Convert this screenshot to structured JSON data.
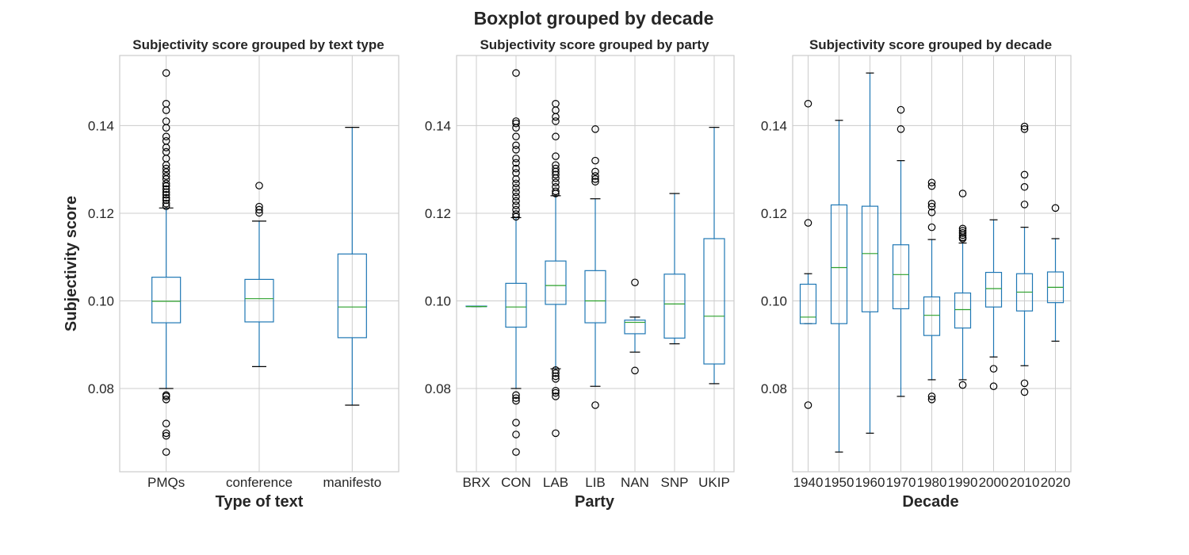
{
  "figure": {
    "suptitle": "Boxplot grouped by decade"
  },
  "chart_data": [
    {
      "type": "box",
      "title": "Subjectivity score grouped by text type",
      "xlabel": "Type of text",
      "ylabel": "Subjectivity score",
      "ylim": [
        0.061,
        0.156
      ],
      "yticks": [
        0.08,
        0.1,
        0.12,
        0.14
      ],
      "ytick_labels": [
        "0.08",
        "0.10",
        "0.12",
        "0.14"
      ],
      "grid": true,
      "categories": [
        "PMQs",
        "conference",
        "manifesto"
      ],
      "boxes": [
        {
          "whislo": 0.08,
          "q1": 0.095,
          "med": 0.0999,
          "q3": 0.1054,
          "whishi": 0.1212,
          "fliers": [
            0.152,
            0.145,
            0.1435,
            0.141,
            0.1395,
            0.1375,
            0.1365,
            0.135,
            0.134,
            0.1325,
            0.131,
            0.1302,
            0.1294,
            0.1285,
            0.1278,
            0.1268,
            0.1262,
            0.1255,
            0.1248,
            0.1242,
            0.1235,
            0.123,
            0.1222,
            0.1216,
            0.0785,
            0.0782,
            0.0775,
            0.072,
            0.0698,
            0.0692,
            0.0655
          ]
        },
        {
          "whislo": 0.085,
          "q1": 0.0952,
          "med": 0.1005,
          "q3": 0.1049,
          "whishi": 0.1182,
          "fliers": [
            0.1263,
            0.1215,
            0.1208,
            0.1201
          ]
        },
        {
          "whislo": 0.0762,
          "q1": 0.0916,
          "med": 0.0986,
          "q3": 0.1107,
          "whishi": 0.1396,
          "fliers": []
        }
      ]
    },
    {
      "type": "box",
      "title": "Subjectivity score grouped by party",
      "xlabel": "Party",
      "ylabel": "",
      "ylim": [
        0.061,
        0.156
      ],
      "yticks": [
        0.08,
        0.1,
        0.12,
        0.14
      ],
      "ytick_labels": [
        "0.08",
        "0.10",
        "0.12",
        "0.14"
      ],
      "grid": true,
      "categories": [
        "BRX",
        "CON",
        "LAB",
        "LIB",
        "NAN",
        "SNP",
        "UKIP"
      ],
      "boxes": [
        {
          "whislo": 0.0987,
          "q1": 0.0987,
          "med": 0.0987,
          "q3": 0.0988,
          "whishi": 0.0988,
          "fliers": []
        },
        {
          "whislo": 0.08,
          "q1": 0.094,
          "med": 0.0986,
          "q3": 0.104,
          "whishi": 0.119,
          "fliers": [
            0.152,
            0.141,
            0.1405,
            0.1395,
            0.1375,
            0.1355,
            0.1345,
            0.1325,
            0.1315,
            0.1302,
            0.1292,
            0.1278,
            0.1268,
            0.1258,
            0.1248,
            0.1238,
            0.1228,
            0.1218,
            0.1208,
            0.1198,
            0.1192,
            0.0785,
            0.0778,
            0.0772,
            0.0722,
            0.0695,
            0.0655
          ]
        },
        {
          "whislo": 0.0845,
          "q1": 0.0992,
          "med": 0.1035,
          "q3": 0.1091,
          "whishi": 0.124,
          "fliers": [
            0.145,
            0.1435,
            0.142,
            0.141,
            0.1375,
            0.133,
            0.131,
            0.1302,
            0.1295,
            0.1288,
            0.128,
            0.127,
            0.126,
            0.125,
            0.1245,
            0.0842,
            0.0835,
            0.0828,
            0.0822,
            0.0795,
            0.079,
            0.0782,
            0.0698
          ]
        },
        {
          "whislo": 0.0805,
          "q1": 0.095,
          "med": 0.1,
          "q3": 0.1069,
          "whishi": 0.1233,
          "fliers": [
            0.1392,
            0.132,
            0.1295,
            0.1285,
            0.1278,
            0.1272,
            0.0762
          ]
        },
        {
          "whislo": 0.0883,
          "q1": 0.0925,
          "med": 0.0951,
          "q3": 0.0956,
          "whishi": 0.0963,
          "fliers": [
            0.1042,
            0.0841
          ]
        },
        {
          "whislo": 0.0902,
          "q1": 0.0915,
          "med": 0.0993,
          "q3": 0.1061,
          "whishi": 0.1245,
          "fliers": []
        },
        {
          "whislo": 0.0811,
          "q1": 0.0856,
          "med": 0.0965,
          "q3": 0.1142,
          "whishi": 0.1396,
          "fliers": []
        }
      ]
    },
    {
      "type": "box",
      "title": "Subjectivity score grouped by decade",
      "xlabel": "Decade",
      "ylabel": "",
      "ylim": [
        0.061,
        0.156
      ],
      "yticks": [
        0.08,
        0.1,
        0.12,
        0.14
      ],
      "ytick_labels": [
        "0.08",
        "0.10",
        "0.12",
        "0.14"
      ],
      "grid": true,
      "categories": [
        "1940",
        "1950",
        "1960",
        "1970",
        "1980",
        "1990",
        "2000",
        "2010",
        "2020"
      ],
      "boxes": [
        {
          "whislo": 0.0948,
          "q1": 0.0948,
          "med": 0.0963,
          "q3": 0.1038,
          "whishi": 0.1062,
          "fliers": [
            0.145,
            0.1178,
            0.0762
          ]
        },
        {
          "whislo": 0.0655,
          "q1": 0.0948,
          "med": 0.1076,
          "q3": 0.1219,
          "whishi": 0.1412,
          "fliers": []
        },
        {
          "whislo": 0.0698,
          "q1": 0.0975,
          "med": 0.1108,
          "q3": 0.1216,
          "whishi": 0.152,
          "fliers": []
        },
        {
          "whislo": 0.0782,
          "q1": 0.0982,
          "med": 0.106,
          "q3": 0.1128,
          "whishi": 0.132,
          "fliers": [
            0.1436,
            0.1392
          ]
        },
        {
          "whislo": 0.082,
          "q1": 0.0921,
          "med": 0.0967,
          "q3": 0.1009,
          "whishi": 0.114,
          "fliers": [
            0.127,
            0.1262,
            0.1222,
            0.1215,
            0.1202,
            0.1168,
            0.0782,
            0.0775
          ]
        },
        {
          "whislo": 0.082,
          "q1": 0.0938,
          "med": 0.098,
          "q3": 0.1018,
          "whishi": 0.1132,
          "fliers": [
            0.1245,
            0.1165,
            0.116,
            0.1155,
            0.115,
            0.1145,
            0.1142,
            0.0808
          ]
        },
        {
          "whislo": 0.0872,
          "q1": 0.0986,
          "med": 0.1028,
          "q3": 0.1065,
          "whishi": 0.1185,
          "fliers": [
            0.0845,
            0.0805
          ]
        },
        {
          "whislo": 0.0852,
          "q1": 0.0977,
          "med": 0.102,
          "q3": 0.1062,
          "whishi": 0.1168,
          "fliers": [
            0.1398,
            0.1392,
            0.1288,
            0.126,
            0.122,
            0.0812,
            0.0792
          ]
        },
        {
          "whislo": 0.0908,
          "q1": 0.0996,
          "med": 0.1031,
          "q3": 0.1066,
          "whishi": 0.1142,
          "fliers": [
            0.1212
          ]
        }
      ]
    }
  ]
}
